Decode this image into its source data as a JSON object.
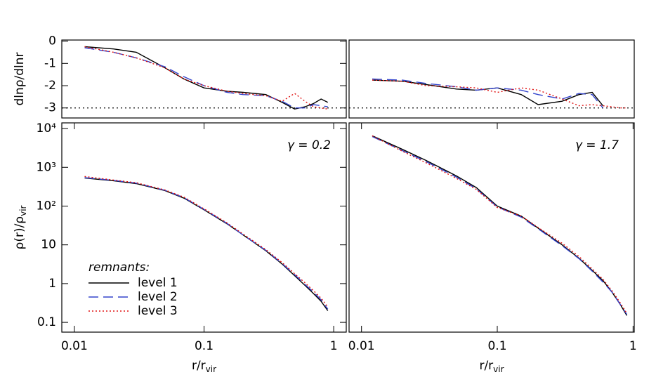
{
  "chart_data": [
    {
      "type": "line",
      "ylabel": "dlnρ/dlnr",
      "xscale": "log",
      "xlim": [
        0.008,
        1.25
      ],
      "ylim": [
        -3.45,
        0.05
      ],
      "yticks": [
        0,
        -1,
        -2,
        -3
      ],
      "reference_line": -3,
      "x": [
        0.012,
        0.02,
        0.03,
        0.05,
        0.07,
        0.1,
        0.15,
        0.2,
        0.3,
        0.4,
        0.5,
        0.6,
        0.7,
        0.8,
        0.9
      ],
      "series": [
        {
          "color": "#000000",
          "dash": "solid",
          "values": [
            -0.25,
            -0.35,
            -0.5,
            -1.2,
            -1.7,
            -2.1,
            -2.25,
            -2.3,
            -2.4,
            -2.75,
            -3.05,
            -2.95,
            -2.8,
            -2.6,
            -2.75
          ]
        },
        {
          "color": "#3344cc",
          "dash": "dashed",
          "values": [
            -0.3,
            -0.5,
            -0.75,
            -1.15,
            -1.6,
            -2.0,
            -2.3,
            -2.4,
            -2.45,
            -2.7,
            -3.0,
            -3.0,
            -2.85,
            -2.9,
            -2.95
          ]
        },
        {
          "color": "#e01010",
          "dash": "dotted",
          "values": [
            -0.25,
            -0.5,
            -0.75,
            -1.2,
            -1.7,
            -2.0,
            -2.25,
            -2.35,
            -2.45,
            -2.7,
            -2.35,
            -2.7,
            -2.95,
            -3.0,
            -3.05
          ]
        }
      ]
    },
    {
      "type": "line",
      "xscale": "log",
      "xlim": [
        0.0081,
        1.02
      ],
      "ylim": [
        -3.45,
        0.05
      ],
      "reference_line": -3,
      "x": [
        0.012,
        0.02,
        0.03,
        0.05,
        0.07,
        0.1,
        0.15,
        0.2,
        0.3,
        0.4,
        0.5,
        0.6,
        0.7,
        0.8,
        0.9
      ],
      "series": [
        {
          "color": "#000000",
          "dash": "solid",
          "values": [
            -1.75,
            -1.8,
            -1.95,
            -2.15,
            -2.2,
            -2.1,
            -2.4,
            -2.85,
            -2.7,
            -2.4,
            -2.3,
            -2.9,
            null,
            null,
            null
          ]
        },
        {
          "color": "#3344cc",
          "dash": "dashed",
          "values": [
            -1.7,
            -1.75,
            -1.9,
            -2.05,
            -2.2,
            -2.1,
            -2.2,
            -2.4,
            -2.6,
            -2.35,
            -2.4,
            -3.0,
            null,
            null,
            null
          ]
        },
        {
          "color": "#e01010",
          "dash": "dotted",
          "values": [
            -1.75,
            -1.8,
            -2.0,
            -2.05,
            -2.1,
            -2.3,
            -2.1,
            -2.2,
            -2.6,
            -2.9,
            -2.85,
            -2.9,
            -2.95,
            -3.0,
            -3.0
          ]
        }
      ]
    },
    {
      "type": "line",
      "ylabel": [
        "ρ(r)/ρ",
        "vir"
      ],
      "xlabel": [
        "r/r",
        "vir"
      ],
      "annotation": "γ = 0.2",
      "xscale": "log",
      "yscale": "log",
      "xlim": [
        0.008,
        1.25
      ],
      "ylim": [
        0.056,
        14000
      ],
      "xticks": [
        0.01,
        0.1,
        1
      ],
      "yticks": [
        {
          "value": 10000,
          "label": "10⁴"
        },
        {
          "value": 1000,
          "label": "10³"
        },
        {
          "value": 100,
          "label": "10²"
        },
        10,
        1,
        0.1
      ],
      "legend": {
        "title": "remnants:",
        "position": "lower left"
      },
      "x": [
        0.012,
        0.02,
        0.03,
        0.05,
        0.07,
        0.1,
        0.15,
        0.2,
        0.3,
        0.4,
        0.5,
        0.6,
        0.7,
        0.8,
        0.9
      ],
      "series": [
        {
          "name": "level 1",
          "color": "#000000",
          "dash": "solid",
          "values": [
            530,
            450,
            380,
            250,
            160,
            80,
            35,
            18,
            7,
            3.2,
            1.6,
            0.9,
            0.55,
            0.35,
            0.2
          ]
        },
        {
          "name": "level 2",
          "color": "#3344cc",
          "dash": "dashed",
          "values": [
            540,
            460,
            390,
            255,
            165,
            82,
            36,
            18,
            7.2,
            3.3,
            1.7,
            0.95,
            0.6,
            0.38,
            0.22
          ]
        },
        {
          "name": "level 3",
          "color": "#e01010",
          "dash": "dotted",
          "values": [
            580,
            470,
            400,
            260,
            170,
            85,
            37,
            19,
            7.5,
            3.5,
            1.8,
            1.05,
            0.65,
            0.42,
            0.25
          ]
        }
      ]
    },
    {
      "type": "line",
      "xlabel": [
        "r/r",
        "vir"
      ],
      "annotation": "γ = 1.7",
      "xscale": "log",
      "yscale": "log",
      "xlim": [
        0.0081,
        1.02
      ],
      "ylim": [
        0.056,
        14000
      ],
      "xticks": [
        0.01,
        0.1,
        1
      ],
      "x": [
        0.012,
        0.02,
        0.03,
        0.05,
        0.07,
        0.1,
        0.15,
        0.2,
        0.3,
        0.4,
        0.5,
        0.6,
        0.7,
        0.8,
        0.9
      ],
      "series": [
        {
          "color": "#000000",
          "dash": "solid",
          "values": [
            6500,
            2900,
            1500,
            600,
            300,
            100,
            55,
            27,
            10,
            4.5,
            2.2,
            1.2,
            0.6,
            0.3,
            0.15
          ]
        },
        {
          "color": "#3344cc",
          "dash": "dashed",
          "values": [
            6200,
            2700,
            1400,
            560,
            280,
            95,
            52,
            26,
            9.5,
            4.4,
            2.1,
            1.1,
            0.6,
            0.3,
            0.16
          ]
        },
        {
          "color": "#e01010",
          "dash": "dotted",
          "values": [
            6500,
            2600,
            1300,
            520,
            270,
            92,
            55,
            28,
            11,
            5,
            2.4,
            1.3,
            0.65,
            0.33,
            0.17
          ]
        }
      ]
    }
  ]
}
